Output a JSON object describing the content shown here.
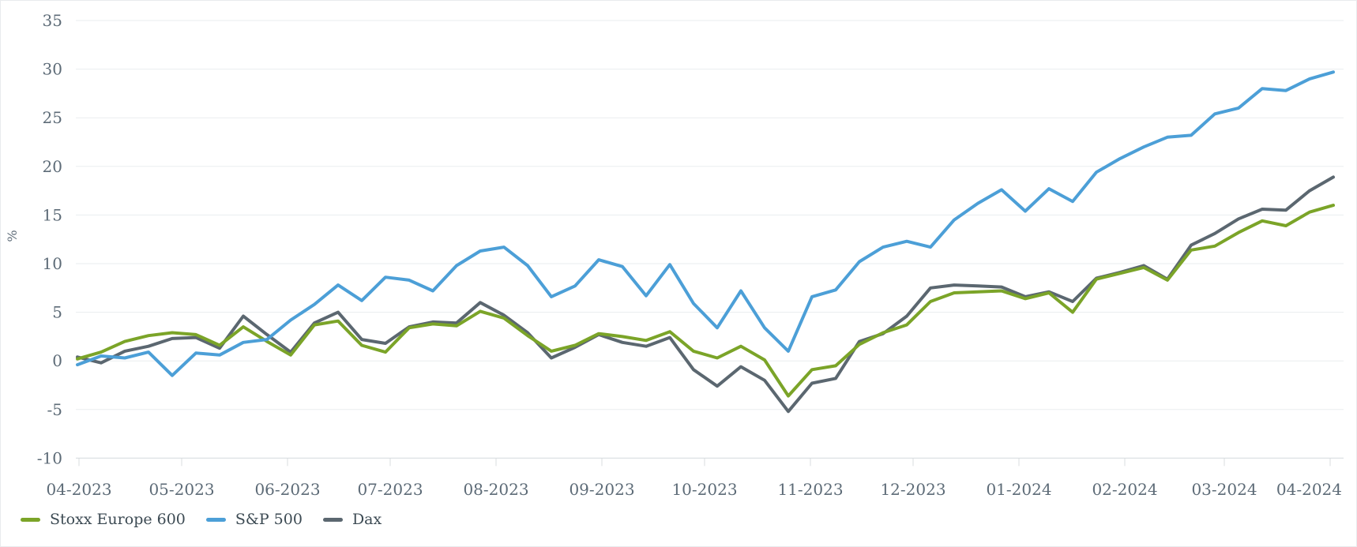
{
  "chart_data": {
    "type": "line",
    "title": "",
    "ylabel": "%",
    "ylim": [
      -10,
      35
    ],
    "yticks": [
      35,
      30,
      25,
      20,
      15,
      10,
      5,
      0,
      -5,
      -10
    ],
    "x_tick_labels": [
      "04-2023",
      "05-2023",
      "06-2023",
      "07-2023",
      "08-2023",
      "09-2023",
      "10-2023",
      "11-2023",
      "12-2023",
      "01-2024",
      "02-2024",
      "03-2024",
      "04-2024"
    ],
    "grid": true,
    "legend_position": "bottom-left",
    "sampling_note": "values in percent, sampled approximately weekly from 04-2023 to 04-2024",
    "series": [
      {
        "name": "Stoxx Europe 600",
        "color": "#7BA428",
        "values": [
          0.2,
          0.9,
          2.0,
          2.6,
          2.9,
          2.7,
          1.6,
          3.5,
          2.0,
          0.6,
          3.7,
          4.1,
          1.6,
          0.9,
          3.4,
          3.8,
          3.6,
          5.1,
          4.4,
          2.6,
          1.0,
          1.6,
          2.8,
          2.5,
          2.1,
          3.0,
          1.0,
          0.3,
          1.5,
          0.1,
          -3.6,
          -0.9,
          -0.5,
          1.7,
          2.9,
          3.7,
          6.1,
          7.0,
          7.1,
          7.2,
          6.4,
          7.0,
          5.0,
          8.4,
          9.0,
          9.6,
          8.3,
          11.4,
          11.8,
          13.2,
          14.4,
          13.9,
          15.3,
          16.0
        ]
      },
      {
        "name": "S&P 500",
        "color": "#4C9FD7",
        "values": [
          -0.4,
          0.5,
          0.3,
          0.9,
          -1.5,
          0.8,
          0.6,
          1.9,
          2.2,
          4.2,
          5.8,
          7.8,
          6.2,
          8.6,
          8.3,
          7.2,
          9.8,
          11.3,
          11.7,
          9.8,
          6.6,
          7.7,
          10.4,
          9.7,
          6.7,
          9.9,
          5.9,
          3.4,
          7.2,
          3.4,
          1.0,
          6.6,
          7.3,
          10.2,
          11.7,
          12.3,
          11.7,
          14.5,
          16.2,
          17.6,
          15.4,
          17.7,
          16.4,
          19.4,
          20.8,
          22.0,
          23.0,
          23.2,
          25.4,
          26.0,
          28.0,
          27.8,
          29.0,
          29.7
        ]
      },
      {
        "name": "Dax",
        "color": "#5B6770",
        "values": [
          0.4,
          -0.2,
          1.0,
          1.5,
          2.3,
          2.4,
          1.3,
          4.6,
          2.7,
          0.9,
          3.9,
          5.0,
          2.2,
          1.8,
          3.5,
          4.0,
          3.9,
          6.0,
          4.7,
          2.9,
          0.3,
          1.4,
          2.7,
          1.9,
          1.5,
          2.4,
          -0.9,
          -2.6,
          -0.6,
          -2.0,
          -5.2,
          -2.3,
          -1.8,
          2.0,
          2.8,
          4.6,
          7.5,
          7.8,
          7.7,
          7.6,
          6.6,
          7.1,
          6.1,
          8.5,
          9.1,
          9.8,
          8.4,
          11.9,
          13.1,
          14.6,
          15.6,
          15.5,
          17.5,
          18.9
        ]
      }
    ]
  }
}
